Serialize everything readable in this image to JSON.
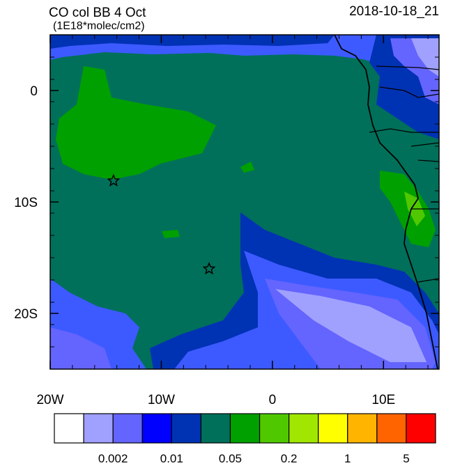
{
  "map": {
    "title": "CO col BB 4 Oct",
    "subtitle": "(1E18*molec/cm2)",
    "date": "2018-10-18_21",
    "xlim": [
      -20,
      15
    ],
    "ylim": [
      -25,
      5
    ],
    "xticks": [
      {
        "value": -20,
        "label": "20W"
      },
      {
        "value": -10,
        "label": "10W"
      },
      0,
      {
        "value": 10,
        "label": "10E"
      }
    ],
    "yticks": [
      0,
      {
        "value": -10,
        "label": "10S"
      },
      {
        "value": -20,
        "label": "20S"
      }
    ],
    "markers": [
      {
        "lon": -14.3,
        "lat": -8.1
      },
      {
        "lon": -5.7,
        "lat": -16.0
      }
    ],
    "colorbar": {
      "colors": [
        "#ffffff",
        "#a0a0ff",
        "#6464ff",
        "#0000ff",
        "#0032b4",
        "#00705a",
        "#00a000",
        "#50c800",
        "#a0e600",
        "#ffff00",
        "#ffb400",
        "#ff6400",
        "#ff0000"
      ],
      "labels": [
        0.002,
        0.01,
        0.05,
        0.2,
        1,
        5
      ]
    }
  }
}
